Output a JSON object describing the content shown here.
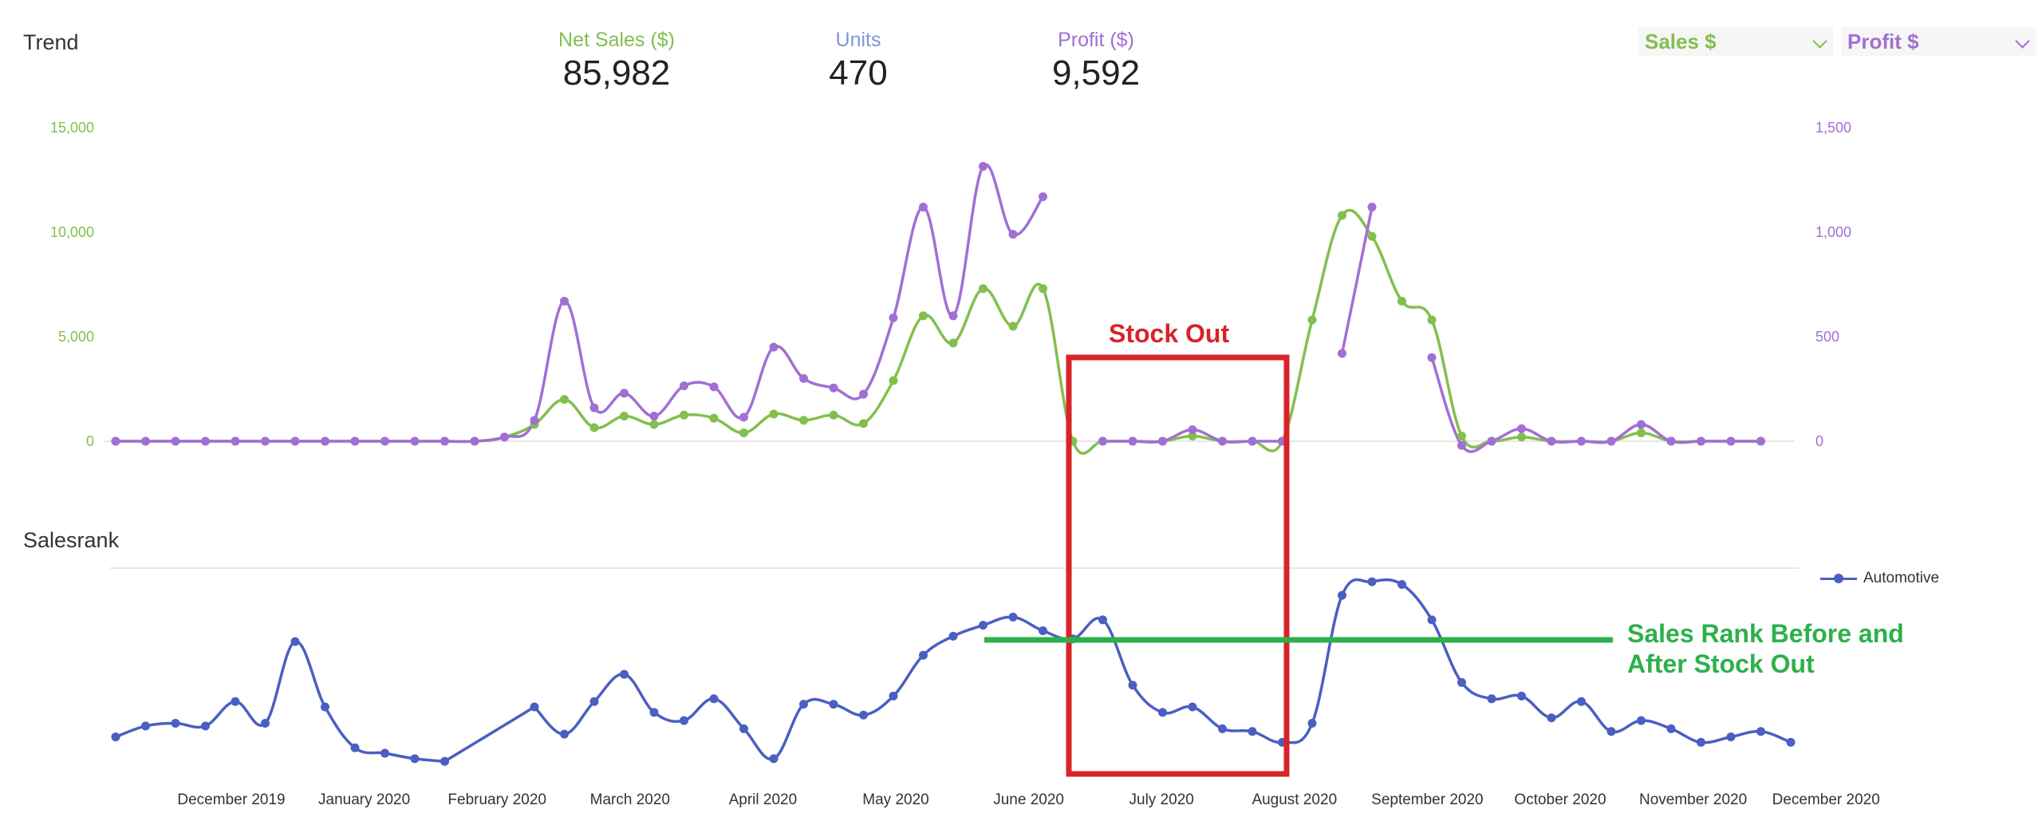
{
  "trend_title": "Trend",
  "salesrank_title": "Salesrank",
  "kpis": [
    {
      "label": "Net Sales ($)",
      "value": "85,982",
      "color": "#82bf4e"
    },
    {
      "label": "Units",
      "value": "470",
      "color": "#7d97d8"
    },
    {
      "label": "Profit ($)",
      "value": "9,592",
      "color": "#a16fd4"
    }
  ],
  "dropdowns": [
    {
      "label": "Sales $",
      "color": "#82bf4e"
    },
    {
      "label": "Profit $",
      "color": "#a16fd4"
    }
  ],
  "colors": {
    "sales": "#82bf4e",
    "profit": "#a16fd4",
    "rank": "#4a5fc1",
    "stockout_box": "#d8232a",
    "rank_line": "#2db04b"
  },
  "annotations": {
    "stock_out": "Stock Out",
    "rank_line_line1": "Sales Rank Before and",
    "rank_line_line2": "After Stock Out"
  },
  "chart_data": [
    {
      "type": "line",
      "title": "Trend",
      "x_labels": [
        "December 2019",
        "January 2020",
        "February 2020",
        "March 2020",
        "April 2020",
        "May 2020",
        "June 2020",
        "July 2020",
        "August 2020",
        "September 2020",
        "October 2020",
        "November 2020",
        "December 2020"
      ],
      "y_left": {
        "ticks": [
          0,
          5000,
          10000,
          15000
        ],
        "tick_labels": [
          "0",
          "5,000",
          "10,000",
          "15,000"
        ],
        "range": [
          0,
          15000
        ]
      },
      "y_right": {
        "ticks": [
          0,
          500,
          1000,
          1500
        ],
        "tick_labels": [
          "0",
          "500",
          "1,000",
          "1,500"
        ],
        "range": [
          0,
          1500
        ]
      },
      "series": [
        {
          "axis": "left",
          "points": [
            [
              0,
              0
            ],
            [
              1,
              0
            ],
            [
              2,
              0
            ],
            [
              3,
              0
            ],
            [
              4,
              0
            ],
            [
              5,
              0
            ],
            [
              6,
              0
            ],
            [
              7,
              0
            ],
            [
              8,
              0
            ],
            [
              9,
              0
            ],
            [
              10,
              0
            ],
            [
              11,
              0
            ],
            [
              12,
              0
            ],
            [
              13,
              200
            ],
            [
              14,
              800
            ],
            [
              15,
              2000
            ],
            [
              16,
              650
            ],
            [
              17,
              1200
            ],
            [
              18,
              800
            ],
            [
              19,
              1250
            ],
            [
              20,
              1100
            ],
            [
              21,
              400
            ],
            [
              22,
              1300
            ],
            [
              23,
              1000
            ],
            [
              24,
              1250
            ],
            [
              25,
              850
            ],
            [
              26,
              2900
            ],
            [
              27,
              6000
            ],
            [
              28,
              4700
            ],
            [
              29,
              7300
            ],
            [
              30,
              5500
            ],
            [
              31,
              7300
            ],
            [
              32,
              0
            ],
            [
              33,
              0
            ],
            [
              34,
              0
            ],
            [
              35,
              0
            ],
            [
              36,
              250
            ],
            [
              37,
              0
            ],
            [
              38,
              0
            ],
            [
              39,
              0
            ],
            [
              40,
              5800
            ],
            [
              41,
              10800
            ],
            [
              42,
              9800
            ],
            [
              43,
              6700
            ],
            [
              44,
              5800
            ],
            [
              45,
              250
            ],
            [
              46,
              0
            ],
            [
              47,
              200
            ],
            [
              48,
              0
            ],
            [
              49,
              0
            ],
            [
              50,
              0
            ],
            [
              51,
              400
            ],
            [
              52,
              0
            ],
            [
              53,
              0
            ],
            [
              54,
              0
            ],
            [
              55,
              0
            ]
          ]
        },
        {
          "axis": "right",
          "points": [
            [
              0,
              0
            ],
            [
              1,
              0
            ],
            [
              2,
              0
            ],
            [
              3,
              0
            ],
            [
              4,
              0
            ],
            [
              5,
              0
            ],
            [
              6,
              0
            ],
            [
              7,
              0
            ],
            [
              8,
              0
            ],
            [
              9,
              0
            ],
            [
              10,
              0
            ],
            [
              11,
              0
            ],
            [
              12,
              0
            ],
            [
              13,
              20
            ],
            [
              14,
              100
            ],
            [
              15,
              670
            ],
            [
              16,
              160
            ],
            [
              17,
              230
            ],
            [
              18,
              120
            ],
            [
              19,
              265
            ],
            [
              20,
              260
            ],
            [
              21,
              115
            ],
            [
              22,
              450
            ],
            [
              23,
              300
            ],
            [
              24,
              255
            ],
            [
              25,
              225
            ],
            [
              26,
              590
            ],
            [
              27,
              1120
            ],
            [
              28,
              600
            ],
            [
              29,
              1315
            ],
            [
              30,
              990
            ],
            [
              31,
              1170
            ],
            [
              33,
              0
            ],
            [
              34,
              0
            ],
            [
              35,
              0
            ],
            [
              36,
              55
            ],
            [
              37,
              0
            ],
            [
              38,
              0
            ],
            [
              39,
              0
            ],
            [
              41,
              420
            ],
            [
              42,
              1120
            ],
            [
              44,
              400
            ],
            [
              45,
              -20
            ],
            [
              46,
              0
            ],
            [
              47,
              60
            ],
            [
              48,
              0
            ],
            [
              49,
              0
            ],
            [
              50,
              0
            ],
            [
              51,
              80
            ],
            [
              52,
              0
            ],
            [
              53,
              0
            ],
            [
              54,
              0
            ],
            [
              55,
              0
            ]
          ]
        }
      ]
    },
    {
      "type": "line",
      "title": "Salesrank",
      "x_labels": [
        "December 2019",
        "January 2020",
        "February 2020",
        "March 2020",
        "April 2020",
        "May 2020",
        "June 2020",
        "July 2020",
        "August 2020",
        "September 2020",
        "October 2020",
        "November 2020",
        "December 2020"
      ],
      "y_axis": {
        "labels_visible": false,
        "inverted": true
      },
      "series": [
        {
          "name": "Automotive",
          "points": [
            [
              0,
              86
            ],
            [
              1,
              84
            ],
            [
              2,
              83.5
            ],
            [
              3,
              84
            ],
            [
              4,
              79.5
            ],
            [
              5,
              83.5
            ],
            [
              6,
              68.5
            ],
            [
              7,
              80.5
            ],
            [
              8,
              88
            ],
            [
              9,
              89
            ],
            [
              10,
              90
            ],
            [
              11,
              90.5
            ],
            [
              14,
              80.5
            ],
            [
              15,
              85.5
            ],
            [
              16,
              79.5
            ],
            [
              17,
              74.5
            ],
            [
              18,
              81.5
            ],
            [
              19,
              83
            ],
            [
              20,
              79
            ],
            [
              21,
              84.5
            ],
            [
              22,
              90
            ],
            [
              23,
              80
            ],
            [
              24,
              80
            ],
            [
              25,
              82
            ],
            [
              26,
              78.5
            ],
            [
              27,
              71
            ],
            [
              28,
              67.5
            ],
            [
              29,
              65.5
            ],
            [
              30,
              64
            ],
            [
              31,
              66.5
            ],
            [
              32,
              68
            ],
            [
              33,
              64.5
            ],
            [
              34,
              76.5
            ],
            [
              35,
              81.5
            ],
            [
              36,
              80.5
            ],
            [
              37,
              84.5
            ],
            [
              38,
              85
            ],
            [
              39,
              87
            ],
            [
              40,
              83.5
            ],
            [
              41,
              60
            ],
            [
              42,
              57.5
            ],
            [
              43,
              58
            ],
            [
              44,
              64.5
            ],
            [
              45,
              76
            ],
            [
              46,
              79
            ],
            [
              47,
              78.5
            ],
            [
              48,
              82.5
            ],
            [
              49,
              79.5
            ],
            [
              50,
              85
            ],
            [
              51,
              83
            ],
            [
              52,
              84.5
            ],
            [
              53,
              87
            ],
            [
              54,
              86
            ],
            [
              55,
              85
            ],
            [
              56,
              87
            ]
          ]
        }
      ]
    }
  ]
}
